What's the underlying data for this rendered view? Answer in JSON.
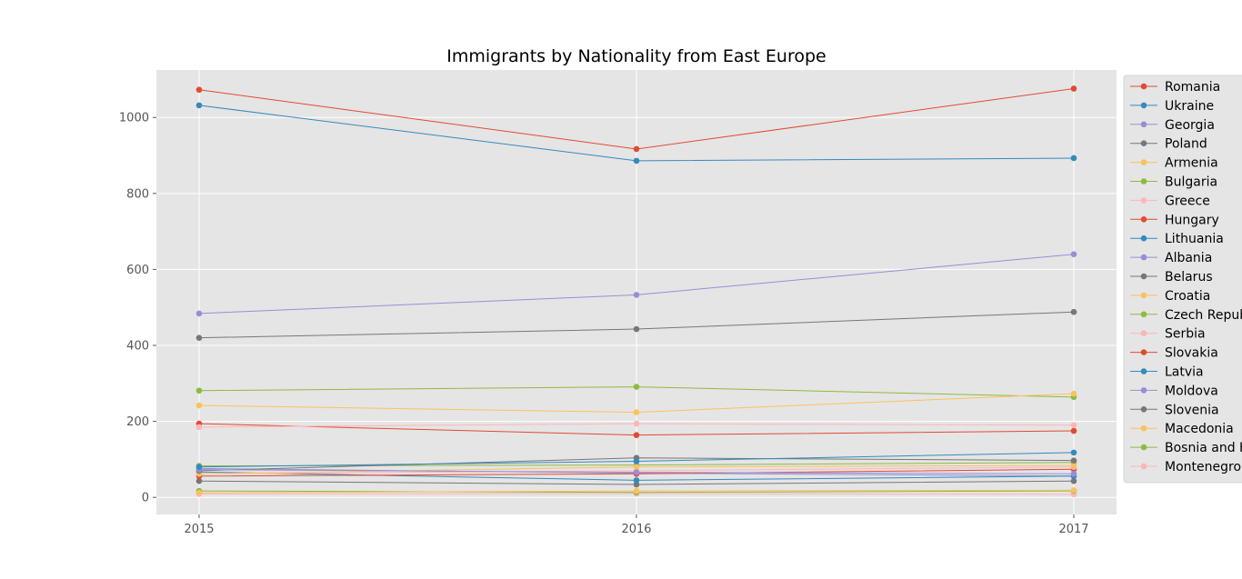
{
  "chart_data": {
    "type": "line",
    "title": "Immigrants by Nationality from East Europe",
    "xlabel": "",
    "ylabel": "",
    "x": [
      2015,
      2016,
      2017
    ],
    "x_tick_labels": [
      "2015",
      "2016",
      "2017"
    ],
    "ylim": [
      -45,
      1125
    ],
    "y_ticks": [
      0,
      200,
      400,
      600,
      800,
      1000
    ],
    "grid": true,
    "legend_position": "right, outside plot",
    "background": "#e5e5e5",
    "series": [
      {
        "name": "Romania",
        "color": "#E24A33",
        "values": [
          1073,
          917,
          1076
        ]
      },
      {
        "name": "Ukraine",
        "color": "#348ABD",
        "values": [
          1032,
          886,
          893
        ]
      },
      {
        "name": "Georgia",
        "color": "#988ED5",
        "values": [
          484,
          533,
          640
        ]
      },
      {
        "name": "Poland",
        "color": "#777777",
        "values": [
          420,
          443,
          488
        ]
      },
      {
        "name": "Armenia",
        "color": "#FBC15E",
        "values": [
          242,
          224,
          273
        ]
      },
      {
        "name": "Bulgaria",
        "color": "#8EBA42",
        "values": [
          281,
          291,
          264
        ]
      },
      {
        "name": "Greece",
        "color": "#FFB5B8",
        "values": [
          185,
          194,
          190
        ]
      },
      {
        "name": "Hungary",
        "color": "#E24A33",
        "values": [
          194,
          164,
          175
        ]
      },
      {
        "name": "Lithuania",
        "color": "#348ABD",
        "values": [
          80,
          95,
          118
        ]
      },
      {
        "name": "Albania",
        "color": "#988ED5",
        "values": [
          73,
          66,
          62
        ]
      },
      {
        "name": "Belarus",
        "color": "#777777",
        "values": [
          70,
          104,
          97
        ]
      },
      {
        "name": "Croatia",
        "color": "#FBC15E",
        "values": [
          62,
          80,
          84
        ]
      },
      {
        "name": "Czech Republic",
        "color": "#8EBA42",
        "values": [
          83,
          85,
          92
        ]
      },
      {
        "name": "Serbia",
        "color": "#FFB5B8",
        "values": [
          62,
          70,
          80
        ]
      },
      {
        "name": "Slovakia",
        "color": "#E24A33",
        "values": [
          56,
          62,
          74
        ]
      },
      {
        "name": "Latvia",
        "color": "#348ABD",
        "values": [
          67,
          45,
          56
        ]
      },
      {
        "name": "Moldova",
        "color": "#988ED5",
        "values": [
          76,
          64,
          56
        ]
      },
      {
        "name": "Slovenia",
        "color": "#777777",
        "values": [
          43,
          34,
          43
        ]
      },
      {
        "name": "Macedonia",
        "color": "#FBC15E",
        "values": [
          12,
          17,
          19
        ]
      },
      {
        "name": "Bosnia and Herzegovina",
        "color": "#8EBA42",
        "values": [
          17,
          13,
          17
        ]
      },
      {
        "name": "Montenegro",
        "color": "#FFB5B8",
        "values": [
          9,
          10,
          8
        ]
      }
    ]
  }
}
